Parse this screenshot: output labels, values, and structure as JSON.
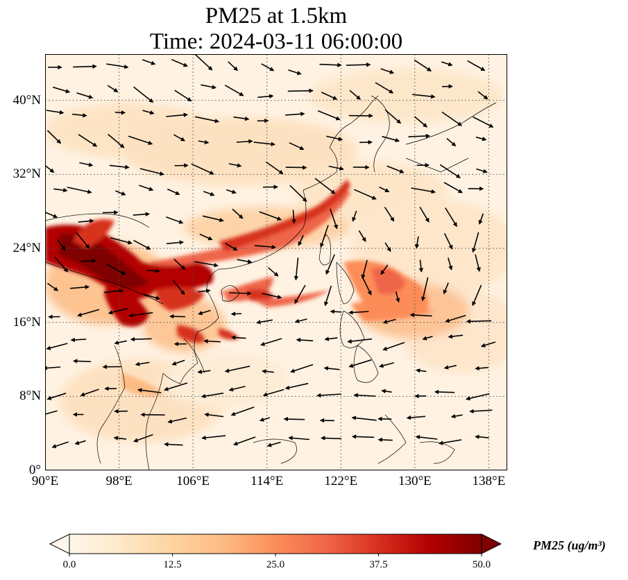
{
  "title": {
    "line1": "PM25 at 1.5km",
    "line2": "Time: 2024-03-11 06:00:00"
  },
  "map": {
    "lon_range": [
      90,
      140
    ],
    "lat_range": [
      0,
      45
    ],
    "lon_ticks": [
      90,
      98,
      106,
      114,
      122,
      130,
      138
    ],
    "lat_ticks": [
      0,
      8,
      16,
      24,
      32,
      40
    ],
    "lon_tick_labels": [
      "90°E",
      "98°E",
      "106°E",
      "114°E",
      "122°E",
      "130°E",
      "138°E"
    ],
    "lat_tick_labels": [
      "0°",
      "8°N",
      "16°N",
      "24°N",
      "32°N",
      "40°N"
    ],
    "gridlines": true,
    "vector_field": "wind"
  },
  "colorbar": {
    "colormap": "OrRd",
    "min": 0.0,
    "max": 50.0,
    "extend": "both",
    "tick_labels": [
      "0.0",
      "12.5",
      "25.0",
      "37.5",
      "50.0"
    ],
    "label": "PM25 (ug/m³)",
    "colors": [
      "#fff7ec",
      "#fee8c8",
      "#fdd49e",
      "#fdbb84",
      "#fc8d59",
      "#ef6548",
      "#d7301f",
      "#b30000",
      "#7f0000"
    ]
  }
}
